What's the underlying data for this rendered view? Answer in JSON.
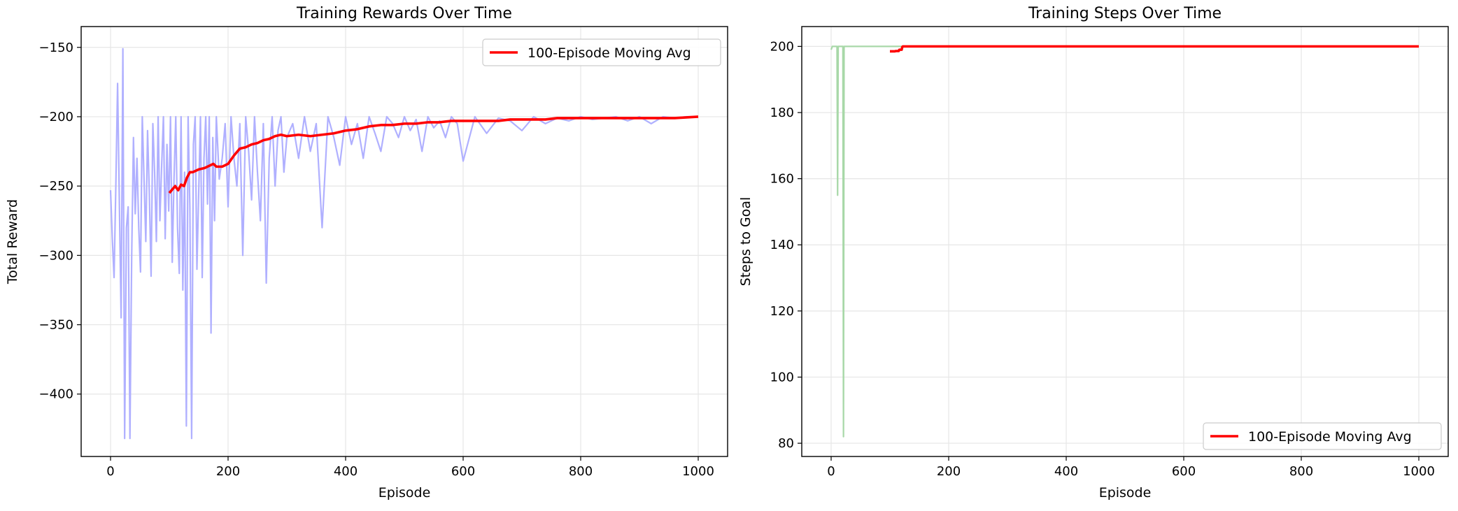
{
  "chart_data": [
    {
      "type": "line",
      "title": "Training Rewards Over Time",
      "xlabel": "Episode",
      "ylabel": "Total Reward",
      "xlim": [
        -50,
        1050
      ],
      "ylim": [
        -445,
        -135
      ],
      "xticks": [
        0,
        200,
        400,
        600,
        800,
        1000
      ],
      "yticks": [
        -400,
        -350,
        -300,
        -250,
        -200,
        -150
      ],
      "grid": true,
      "legend": {
        "placement": "top-right",
        "entries": [
          "100-Episode Moving Avg"
        ]
      },
      "series": [
        {
          "color": "#b0b0ff",
          "style": "raw-per-episode",
          "x": [
            0,
            3,
            6,
            9,
            12,
            15,
            18,
            21,
            24,
            27,
            30,
            33,
            36,
            39,
            42,
            45,
            48,
            51,
            54,
            57,
            60,
            63,
            66,
            69,
            72,
            75,
            78,
            81,
            84,
            87,
            90,
            93,
            96,
            99,
            102,
            105,
            108,
            111,
            114,
            117,
            120,
            123,
            126,
            129,
            132,
            135,
            138,
            141,
            144,
            147,
            150,
            153,
            156,
            159,
            162,
            165,
            168,
            171,
            174,
            177,
            180,
            185,
            190,
            195,
            200,
            205,
            210,
            215,
            220,
            225,
            230,
            235,
            240,
            245,
            250,
            255,
            260,
            265,
            270,
            275,
            280,
            285,
            290,
            295,
            300,
            310,
            320,
            330,
            340,
            350,
            360,
            370,
            380,
            390,
            400,
            410,
            420,
            430,
            440,
            450,
            460,
            470,
            480,
            490,
            500,
            510,
            520,
            530,
            540,
            550,
            560,
            570,
            580,
            590,
            600,
            620,
            640,
            660,
            680,
            700,
            720,
            740,
            760,
            780,
            800,
            820,
            840,
            860,
            880,
            900,
            920,
            940,
            960,
            980,
            1000
          ],
          "y": [
            -253,
            -288,
            -316,
            -250,
            -176,
            -262,
            -345,
            -151,
            -432,
            -280,
            -265,
            -432,
            -300,
            -215,
            -270,
            -230,
            -280,
            -312,
            -200,
            -245,
            -290,
            -210,
            -255,
            -315,
            -205,
            -240,
            -290,
            -200,
            -275,
            -235,
            -200,
            -288,
            -220,
            -268,
            -200,
            -305,
            -245,
            -200,
            -280,
            -313,
            -200,
            -325,
            -240,
            -423,
            -200,
            -265,
            -432,
            -220,
            -200,
            -310,
            -255,
            -200,
            -316,
            -230,
            -200,
            -263,
            -200,
            -356,
            -215,
            -275,
            -200,
            -245,
            -230,
            -205,
            -265,
            -200,
            -230,
            -250,
            -205,
            -300,
            -200,
            -225,
            -260,
            -200,
            -240,
            -275,
            -205,
            -320,
            -230,
            -200,
            -250,
            -210,
            -200,
            -240,
            -215,
            -205,
            -230,
            -200,
            -225,
            -205,
            -280,
            -200,
            -215,
            -235,
            -200,
            -220,
            -205,
            -230,
            -200,
            -212,
            -225,
            -200,
            -205,
            -215,
            -200,
            -210,
            -202,
            -225,
            -200,
            -208,
            -203,
            -215,
            -200,
            -205,
            -232,
            -200,
            -212,
            -201,
            -203,
            -210,
            -200,
            -205,
            -201,
            -203,
            -200,
            -202,
            -201,
            -200,
            -203,
            -200,
            -205,
            -200,
            -201,
            -200,
            -200
          ]
        },
        {
          "name": "100-Episode Moving Avg",
          "color": "#ff0000",
          "style": "moving-average",
          "x": [
            100,
            110,
            115,
            120,
            125,
            130,
            135,
            140,
            150,
            160,
            170,
            175,
            180,
            190,
            200,
            210,
            220,
            230,
            240,
            250,
            260,
            270,
            280,
            290,
            300,
            320,
            340,
            360,
            380,
            400,
            420,
            440,
            460,
            480,
            500,
            520,
            540,
            560,
            580,
            600,
            620,
            640,
            660,
            680,
            700,
            720,
            740,
            760,
            780,
            800,
            840,
            880,
            920,
            960,
            1000
          ],
          "y": [
            -255,
            -250,
            -253,
            -249,
            -250,
            -244,
            -240,
            -240,
            -238,
            -237,
            -235,
            -234,
            -236,
            -236,
            -234,
            -228,
            -223,
            -222,
            -220,
            -219,
            -217,
            -216,
            -214,
            -213,
            -214,
            -213,
            -214,
            -213,
            -212,
            -210,
            -209,
            -207,
            -206,
            -206,
            -205,
            -205,
            -204,
            -204,
            -203,
            -203,
            -203,
            -203,
            -203,
            -202,
            -202,
            -202,
            -202,
            -201,
            -201,
            -201,
            -201,
            -201,
            -201,
            -201,
            -200
          ]
        }
      ]
    },
    {
      "type": "line",
      "title": "Training Steps Over Time",
      "xlabel": "Episode",
      "ylabel": "Steps to Goal",
      "xlim": [
        -50,
        1050
      ],
      "ylim": [
        76,
        206
      ],
      "xticks": [
        0,
        200,
        400,
        600,
        800,
        1000
      ],
      "yticks": [
        80,
        100,
        120,
        140,
        160,
        180,
        200
      ],
      "grid": true,
      "legend": {
        "placement": "bottom-right",
        "entries": [
          "100-Episode Moving Avg"
        ]
      },
      "series": [
        {
          "color": "#a8d8a8",
          "style": "raw-per-episode",
          "x": [
            0,
            2,
            3,
            10,
            11,
            12,
            13,
            14,
            20,
            21,
            22,
            23,
            24,
            40,
            1000
          ],
          "y": [
            199,
            200,
            200,
            200,
            155,
            200,
            200,
            200,
            200,
            82,
            200,
            200,
            200,
            200,
            200
          ]
        },
        {
          "name": "100-Episode Moving Avg",
          "color": "#ff0000",
          "style": "moving-average",
          "x": [
            100,
            108,
            110,
            115,
            116,
            120,
            121,
            122,
            125,
            200,
            400,
            600,
            800,
            1000
          ],
          "y": [
            198.5,
            198.5,
            198.6,
            198.6,
            199.0,
            199.0,
            199.8,
            200,
            200,
            200,
            200,
            200,
            200,
            200
          ]
        }
      ]
    }
  ]
}
